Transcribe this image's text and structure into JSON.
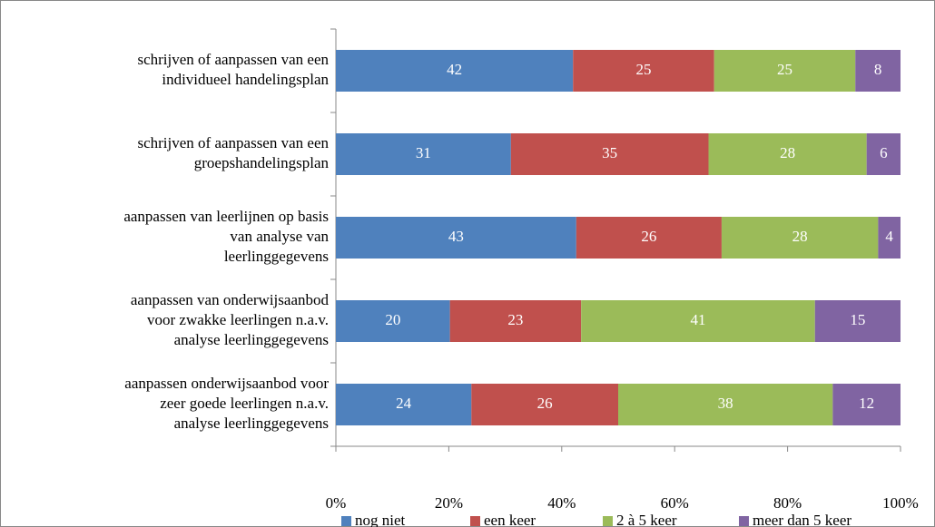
{
  "chart_data": {
    "type": "bar",
    "orientation": "horizontal",
    "stacked": "percent",
    "categories": [
      [
        "schrijven of aanpassen van een",
        "individueel handelingsplan"
      ],
      [
        "schrijven of aanpassen van een",
        "groepshandelingsplan"
      ],
      [
        "aanpassen van leerlijnen op basis",
        "van analyse van",
        "leerlinggegevens"
      ],
      [
        "aanpassen van onderwijsaanbod",
        "voor zwakke leerlingen n.a.v.",
        "analyse leerlinggegevens"
      ],
      [
        "aanpassen onderwijsaanbod voor",
        "zeer goede leerlingen n.a.v.",
        "analyse leerlinggegevens"
      ]
    ],
    "series": [
      {
        "name": "nog niet",
        "color": "#4f81bd",
        "values": [
          42,
          31,
          43,
          20,
          24
        ]
      },
      {
        "name": "een keer",
        "color": "#c0504d",
        "values": [
          25,
          35,
          26,
          23,
          26
        ]
      },
      {
        "name": "2 à 5 keer",
        "color": "#9bbb59",
        "values": [
          25,
          28,
          28,
          41,
          38
        ]
      },
      {
        "name": "meer dan 5 keer",
        "color": "#8064a2",
        "values": [
          8,
          6,
          4,
          15,
          12
        ]
      }
    ],
    "xlim": [
      0,
      100
    ],
    "xticks": [
      {
        "value": 0,
        "label": "0%"
      },
      {
        "value": 20,
        "label": "20%"
      },
      {
        "value": 40,
        "label": "40%"
      },
      {
        "value": 60,
        "label": "60%"
      },
      {
        "value": 80,
        "label": "80%"
      },
      {
        "value": 100,
        "label": "100%"
      }
    ],
    "legend": "bottom"
  }
}
